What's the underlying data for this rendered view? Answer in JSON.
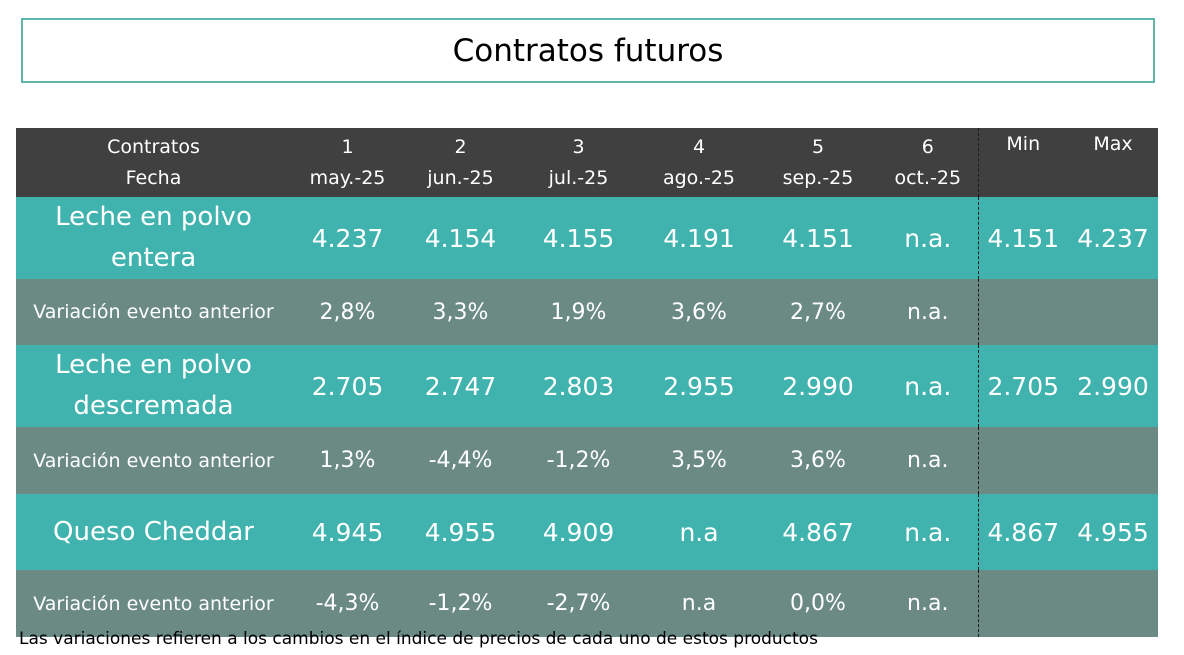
{
  "title": "Contratos futuros",
  "header": {
    "row1_label": "Contratos",
    "row2_label": "Fecha",
    "contracts": [
      {
        "num": "1",
        "date": "may.-25"
      },
      {
        "num": "2",
        "date": "jun.-25"
      },
      {
        "num": "3",
        "date": "jul.-25"
      },
      {
        "num": "4",
        "date": "ago.-25"
      },
      {
        "num": "5",
        "date": "sep.-25"
      },
      {
        "num": "6",
        "date": "oct.-25"
      }
    ],
    "min_label": "Min",
    "max_label": "Max"
  },
  "rows": [
    {
      "product_line1": "Leche en polvo",
      "product_line2": "entera",
      "values": [
        "4.237",
        "4.154",
        "4.155",
        "4.191",
        "4.151",
        "n.a."
      ],
      "min": "4.151",
      "max": "4.237",
      "var_label": "Variación evento anterior",
      "variations": [
        "2,8%",
        "3,3%",
        "1,9%",
        "3,6%",
        "2,7%",
        "n.a."
      ]
    },
    {
      "product_line1": "Leche en polvo",
      "product_line2": "descremada",
      "values": [
        "2.705",
        "2.747",
        "2.803",
        "2.955",
        "2.990",
        "n.a."
      ],
      "min": "2.705",
      "max": "2.990",
      "var_label": "Variación evento anterior",
      "variations": [
        "1,3%",
        "-4,4%",
        "-1,2%",
        "3,5%",
        "3,6%",
        "n.a."
      ]
    },
    {
      "product_line1": "Queso Cheddar",
      "product_line2": "",
      "values": [
        "4.945",
        "4.955",
        "4.909",
        "n.a",
        "4.867",
        "n.a."
      ],
      "min": "4.867",
      "max": "4.955",
      "var_label": "Variación evento anterior",
      "variations": [
        "-4,3%",
        "-1,2%",
        "-2,7%",
        "n.a",
        "0,0%",
        "n.a."
      ]
    }
  ],
  "footnote": "Las variaciones refieren a los cambios en el índice de precios de cada uno de estos productos"
}
